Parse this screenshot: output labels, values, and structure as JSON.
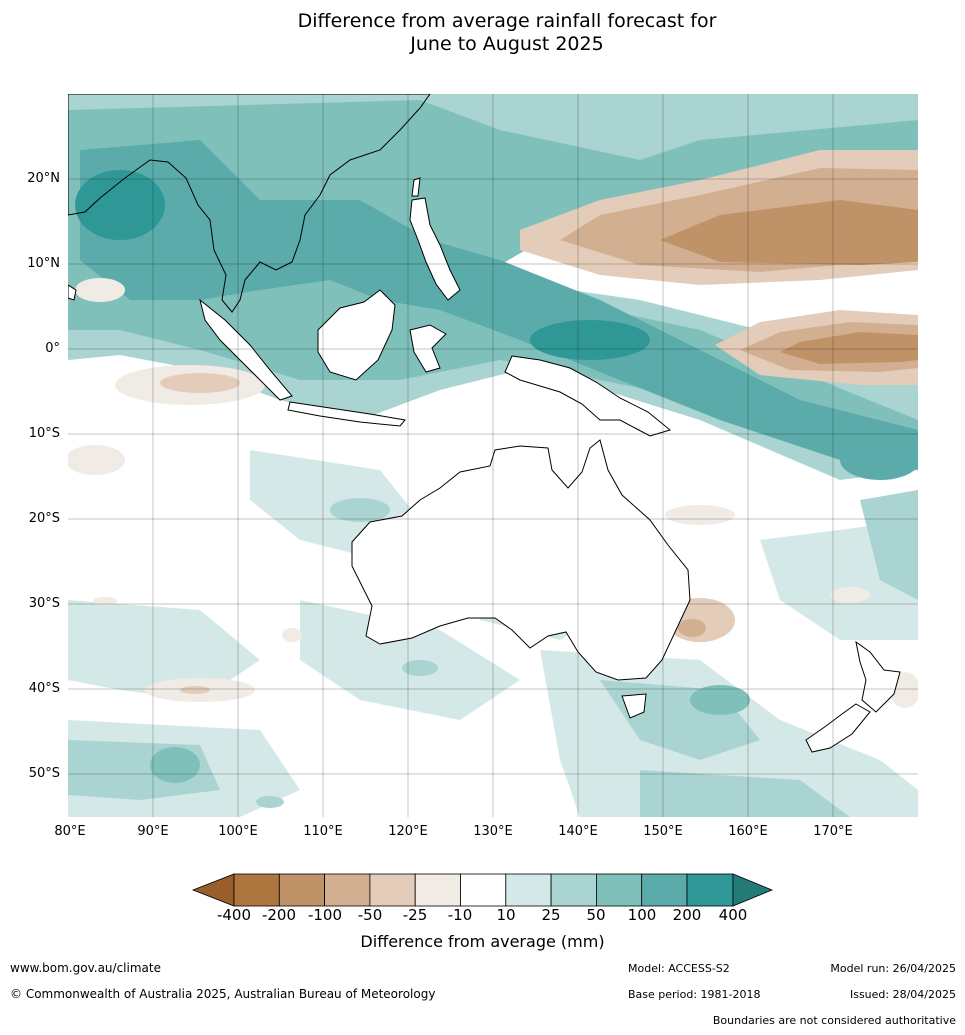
{
  "title": {
    "line1": "Difference from average rainfall forecast for",
    "line2": "June to August 2025"
  },
  "map": {
    "latitude_labels": [
      "20°N",
      "10°N",
      "0°",
      "10°S",
      "20°S",
      "30°S",
      "40°S",
      "50°S"
    ],
    "longitude_labels": [
      "80°E",
      "90°E",
      "100°E",
      "110°E",
      "120°E",
      "130°E",
      "140°E",
      "150°E",
      "160°E",
      "170°E"
    ]
  },
  "colorbar": {
    "label": "Difference from average (mm)",
    "ticks": [
      "-400",
      "-200",
      "-100",
      "-50",
      "-25",
      "-10",
      "10",
      "25",
      "50",
      "100",
      "200",
      "400"
    ],
    "colors": {
      "below_min": "#9a5e2a",
      "bins": [
        "#ad763f",
        "#c09268",
        "#d2af90",
        "#e3cdba",
        "#f1ebe5",
        "#ffffff",
        "#d4e9e7",
        "#a9d4d1",
        "#80c0bb",
        "#5aabaa",
        "#2f9896"
      ],
      "above_max": "#237b78"
    }
  },
  "footer": {
    "website": "www.bom.gov.au/climate",
    "copyright": "© Commonwealth of Australia 2025, Australian Bureau of Meteorology",
    "model": "Model: ACCESS-S2",
    "base_period": "Base period: 1981-2018",
    "model_run": "Model run: 26/04/2025",
    "issued": "Issued: 28/04/2025",
    "boundaries_note": "Boundaries are not considered authoritative"
  }
}
